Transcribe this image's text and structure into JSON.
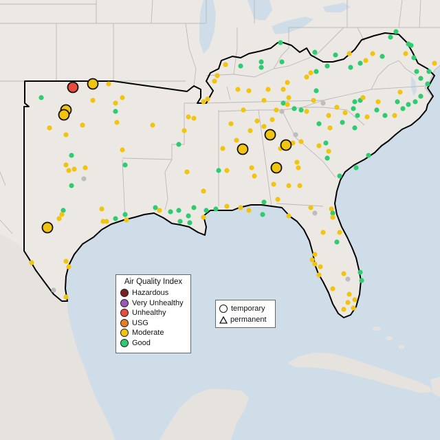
{
  "colors": {
    "water": "#cfdde8",
    "land": "#ece8e4",
    "outside_land": "#e6e2de",
    "border": "#b9b9bc",
    "region_outline": "#000000",
    "good": "#2ecc71",
    "moderate": "#f1c40f",
    "usg": "#e67e22",
    "unhealthy": "#e74c3c",
    "very_unhealthy": "#9b59b6",
    "hazardous": "#7b2020",
    "no_data": "#bdbdbd"
  },
  "aqi_legend": {
    "title": "Air Quality Index",
    "items": [
      {
        "label": "Hazardous",
        "color": "#7b2020"
      },
      {
        "label": "Very Unhealthy",
        "color": "#9b59b6"
      },
      {
        "label": "Unhealthy",
        "color": "#e74c3c"
      },
      {
        "label": "USG",
        "color": "#e67e22"
      },
      {
        "label": "Moderate",
        "color": "#f1c40f"
      },
      {
        "label": "Good",
        "color": "#2ecc71"
      }
    ]
  },
  "monitor_legend": {
    "temporary": "temporary",
    "permanent": "permanent"
  }
}
